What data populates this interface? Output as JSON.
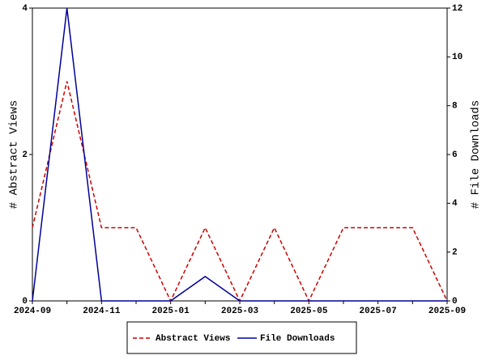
{
  "chart_data": {
    "type": "line",
    "categories": [
      "2024-09",
      null,
      "2024-11",
      null,
      "2025-01",
      null,
      "2025-03",
      null,
      "2025-05",
      null,
      "2025-07",
      null,
      "2025-09"
    ],
    "y_label": "# Abstract Views",
    "y2_label": "# File Downloads",
    "ylim": [
      0,
      4
    ],
    "yticks": [
      0,
      2,
      4
    ],
    "y2lim": [
      0,
      12
    ],
    "y2ticks": [
      0,
      2,
      4,
      6,
      8,
      10,
      12
    ],
    "legend": "bottom",
    "series": [
      {
        "name": "Abstract Views",
        "color": "#cc0000",
        "dash": true,
        "values": [
          1,
          3,
          1,
          1,
          0,
          1,
          0,
          1,
          0,
          1,
          1,
          1,
          0
        ]
      },
      {
        "name": "File Downloads",
        "color": "#000099",
        "axis": "y2",
        "values": [
          0,
          12,
          0,
          0,
          0,
          1,
          0,
          0,
          0,
          0,
          0,
          0,
          0
        ]
      }
    ]
  }
}
